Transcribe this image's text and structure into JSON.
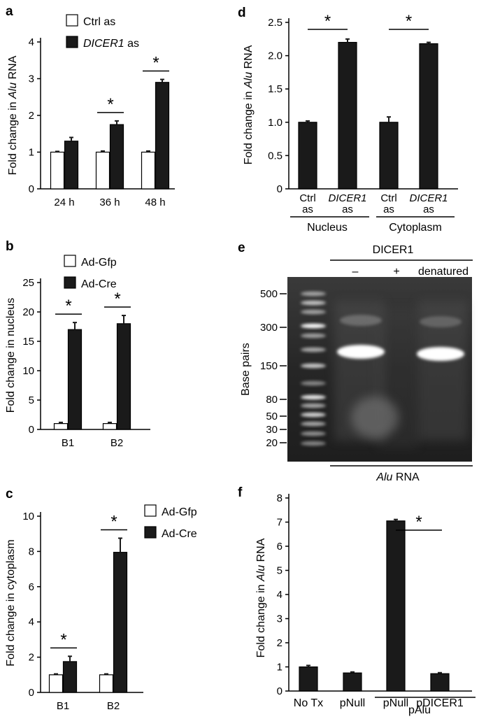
{
  "figure": {
    "gel_panel": {
      "label": "e",
      "enzyme": "DICER1",
      "lanes": [
        "–",
        "+",
        "denatured"
      ],
      "ylabel": "Base pairs",
      "marker_labels": [
        "500",
        "300",
        "150",
        "80",
        "50",
        "30",
        "20"
      ],
      "bottom_label_italic": "Alu",
      "bottom_label_rest": " RNA"
    }
  },
  "chart_data": [
    {
      "panel": "a",
      "type": "bar",
      "categories": [
        "24 h",
        "36 h",
        "48 h"
      ],
      "ylabel_pre": "Fold change in ",
      "ylabel_italic": "Alu",
      "ylabel_post": " RNA",
      "ylim": [
        0,
        4
      ],
      "yticks": [
        "0",
        "1",
        "2",
        "3",
        "4"
      ],
      "series": [
        {
          "name": "Ctrl as",
          "color": "#ffffff",
          "values": [
            1.0,
            1.0,
            1.0
          ],
          "errors": [
            0.02,
            0.03,
            0.03
          ]
        },
        {
          "name_italic": "DICER1",
          "name_rest": " as",
          "color": "#1a1a1a",
          "values": [
            1.3,
            1.75,
            2.9
          ],
          "errors": [
            0.1,
            0.1,
            0.08
          ]
        }
      ],
      "significance": [
        "",
        "*",
        "*"
      ]
    },
    {
      "panel": "b",
      "type": "bar",
      "categories": [
        "B1",
        "B2"
      ],
      "ylabel": "Fold change in nucleus",
      "ylim": [
        0,
        25
      ],
      "yticks": [
        "0",
        "5",
        "10",
        "15",
        "20",
        "25"
      ],
      "series": [
        {
          "name": "Ad-Gfp",
          "color": "#ffffff",
          "values": [
            1.0,
            1.0
          ],
          "errors": [
            0.2,
            0.2
          ]
        },
        {
          "name": "Ad-Cre",
          "color": "#1a1a1a",
          "values": [
            17.0,
            18.0
          ],
          "errors": [
            1.2,
            1.4
          ]
        }
      ],
      "significance": [
        "*",
        "*"
      ]
    },
    {
      "panel": "c",
      "type": "bar",
      "categories": [
        "B1",
        "B2"
      ],
      "ylabel": "Fold change in cytoplasm",
      "ylim": [
        0,
        10
      ],
      "yticks": [
        "0",
        "2",
        "4",
        "6",
        "8",
        "10"
      ],
      "series": [
        {
          "name": "Ad-Gfp",
          "color": "#ffffff",
          "values": [
            1.0,
            1.0
          ],
          "errors": [
            0.05,
            0.05
          ]
        },
        {
          "name": "Ad-Cre",
          "color": "#1a1a1a",
          "values": [
            1.75,
            7.95
          ],
          "errors": [
            0.3,
            0.8
          ]
        }
      ],
      "significance": [
        "*",
        "*"
      ]
    },
    {
      "panel": "d",
      "type": "bar",
      "ylabel_pre": "Fold change in ",
      "ylabel_italic": "Alu",
      "ylabel_post": " RNA",
      "ylim": [
        0,
        2.5
      ],
      "yticks": [
        "0",
        "0.5",
        "1.0",
        "1.5",
        "2.0",
        "2.5"
      ],
      "bars": [
        {
          "label_top": "Ctrl",
          "label_bottom": "as",
          "italic": false,
          "value": 1.0,
          "error": 0.02
        },
        {
          "label_top": "DICER1",
          "label_bottom": "as",
          "italic": true,
          "value": 2.2,
          "error": 0.05
        },
        {
          "label_top": "Ctrl",
          "label_bottom": "as",
          "italic": false,
          "value": 1.0,
          "error": 0.08
        },
        {
          "label_top": "DICER1",
          "label_bottom": "as",
          "italic": true,
          "value": 2.18,
          "error": 0.02
        }
      ],
      "groups": [
        "Nucleus",
        "Cytoplasm"
      ],
      "significance": [
        "*",
        "*"
      ]
    },
    {
      "panel": "f",
      "type": "bar",
      "ylabel_pre": "Fold change in ",
      "ylabel_italic": "Alu",
      "ylabel_post": " RNA",
      "ylim": [
        0,
        8
      ],
      "yticks": [
        "0",
        "1",
        "2",
        "3",
        "4",
        "5",
        "6",
        "7",
        "8"
      ],
      "categories": [
        "No Tx",
        "pNull",
        "pNull",
        "pDICER1"
      ],
      "values": [
        1.0,
        0.75,
        7.05,
        0.72
      ],
      "errors": [
        0.06,
        0.04,
        0.06,
        0.04
      ],
      "group_label": "pAlu",
      "significance": "*"
    }
  ]
}
